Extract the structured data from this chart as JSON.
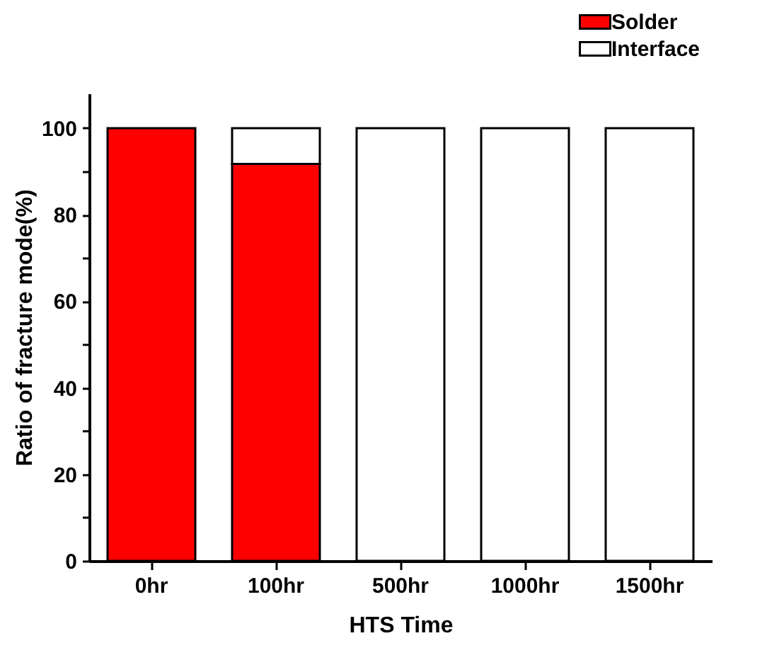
{
  "chart_data": {
    "type": "bar",
    "stacked": true,
    "xlabel": "HTS Time",
    "ylabel": "Ratio of fracture mode(%)",
    "categories": [
      "0hr",
      "100hr",
      "500hr",
      "1000hr",
      "1500hr"
    ],
    "series": [
      {
        "name": "Solder",
        "color": "#ff0000",
        "values": [
          100,
          91.7,
          0,
          0,
          0
        ]
      },
      {
        "name": "Interface",
        "color": "#ffffff",
        "values": [
          0,
          8.3,
          100,
          100,
          100
        ]
      }
    ],
    "ylim": [
      0,
      108
    ],
    "yticks": [
      0,
      {
        "value": 10,
        "label": null
      },
      20,
      {
        "value": 30,
        "label": null
      },
      40,
      {
        "value": 50,
        "label": null
      },
      60,
      {
        "value": 70,
        "label": null
      },
      80,
      {
        "value": 90,
        "label": null
      },
      100
    ],
    "legend": "top right",
    "grid": false
  }
}
